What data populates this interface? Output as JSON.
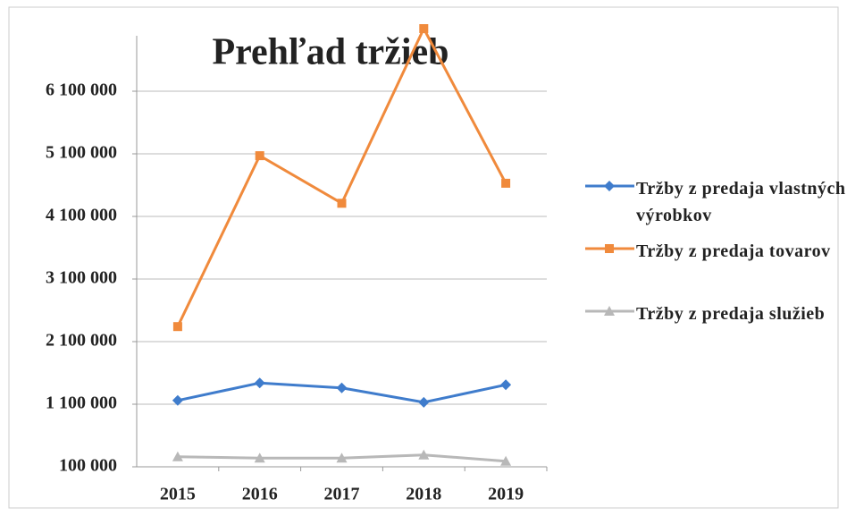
{
  "chart_data": {
    "type": "line",
    "title": "Prehľad tržieb",
    "categories": [
      "2015",
      "2016",
      "2017",
      "2018",
      "2019"
    ],
    "series": [
      {
        "name": "Tržby z predaja vlastných výrobkov",
        "color": "#3f7ccc",
        "marker": "diamond",
        "values": [
          1160000,
          1440000,
          1360000,
          1130000,
          1410000
        ]
      },
      {
        "name": "Tržby z predaja tovarov",
        "color": "#f08a3c",
        "marker": "square",
        "values": [
          2340000,
          5070000,
          4310000,
          7100000,
          4630000
        ]
      },
      {
        "name": "Tržby z predaja služieb",
        "color": "#b8b8b8",
        "marker": "triangle",
        "values": [
          260000,
          240000,
          240000,
          290000,
          190000
        ]
      }
    ],
    "ylim": [
      100000,
      7100000
    ],
    "yticks": [
      {
        "value": 100000,
        "label": "100 000"
      },
      {
        "value": 1100000,
        "label": "1 100 000"
      },
      {
        "value": 2100000,
        "label": "2 100 000"
      },
      {
        "value": 3100000,
        "label": "3 100 000"
      },
      {
        "value": 4100000,
        "label": "4 100 000"
      },
      {
        "value": 5100000,
        "label": "5 100 000"
      },
      {
        "value": 6100000,
        "label": "6 100 000"
      }
    ],
    "grid": true,
    "legend": "right"
  }
}
